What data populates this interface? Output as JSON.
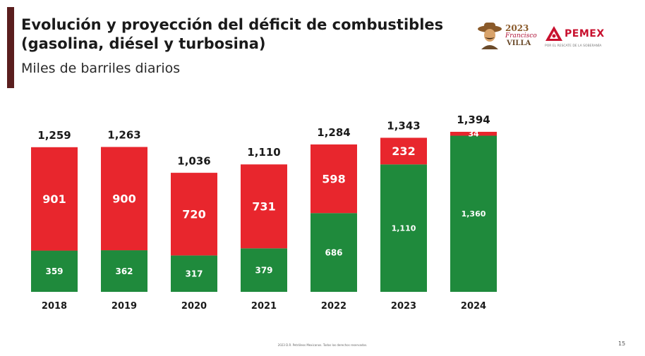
{
  "header": {
    "title": "Evolución y proyección del déficit de combustibles (gasolina, diésel y turbosina)",
    "subtitle": "Miles de barriles diarios"
  },
  "logos": {
    "commemorative": {
      "year": "2023",
      "script": "Francisco",
      "name": "VILLA"
    },
    "pemex": {
      "name": "PEMEX",
      "tagline": "POR EL RESCATE DE LA SOBERANÍA"
    }
  },
  "chart_data": {
    "type": "bar",
    "stacked": true,
    "categories": [
      "2018",
      "2019",
      "2020",
      "2021",
      "2022",
      "2023",
      "2024"
    ],
    "series": [
      {
        "values": [
          359,
          362,
          317,
          379,
          686,
          1110,
          1360
        ],
        "labels": [
          "359",
          "362",
          "317",
          "379",
          "686",
          "1,110",
          "1,360"
        ],
        "color": "#1f8a3c"
      },
      {
        "values": [
          901,
          900,
          720,
          731,
          598,
          232,
          34
        ],
        "labels": [
          "901",
          "900",
          "720",
          "731",
          "598",
          "232",
          "34"
        ],
        "color": "#e8262d"
      }
    ],
    "totals": [
      "1,259",
      "1,263",
      "1,036",
      "1,110",
      "1,284",
      "1,343",
      "1,394"
    ],
    "total_values": [
      1259,
      1263,
      1036,
      1110,
      1284,
      1343,
      1394
    ],
    "ylim": [
      0,
      1400
    ],
    "grid": false,
    "legend": "none"
  },
  "footer": {
    "note": "2023 D.R. Petróleos Mexicanos. Todos los derechos reservados.",
    "page_number": "15"
  }
}
